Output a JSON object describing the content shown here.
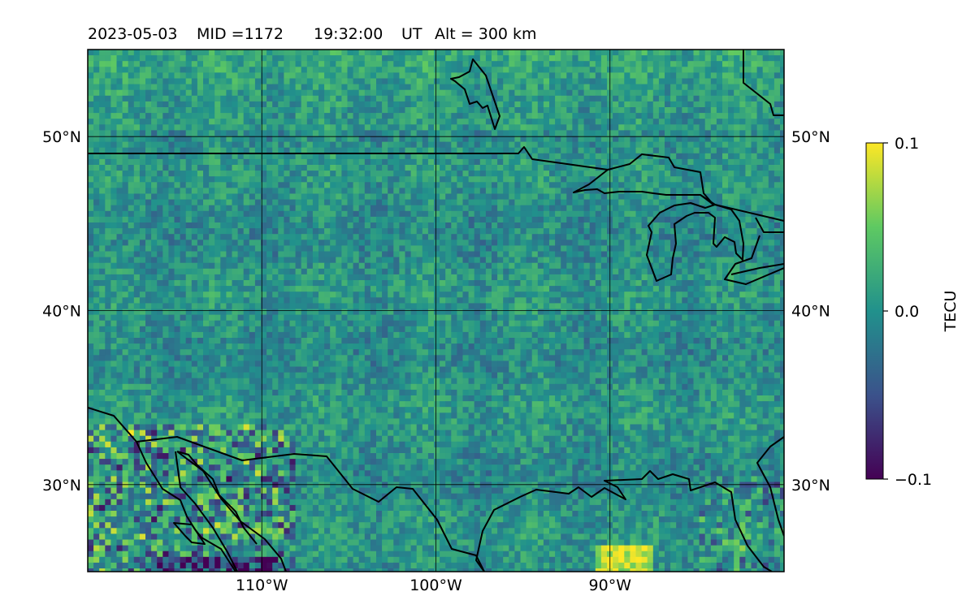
{
  "title": {
    "date": "2023-05-03",
    "mid": "MID =1172",
    "time": "19:32:00",
    "ut": "UT",
    "alt": "Alt = 300 km"
  },
  "map": {
    "projection": "equirectangular",
    "lon_range": [
      -120,
      -80
    ],
    "lat_range": [
      25,
      55
    ],
    "gridlines": true,
    "lon_ticks": [
      {
        "value": -110,
        "label": "110°W"
      },
      {
        "value": -100,
        "label": "100°W"
      },
      {
        "value": -90,
        "label": "90°W"
      }
    ],
    "lat_ticks": [
      {
        "value": 50,
        "label": "50°N"
      },
      {
        "value": 40,
        "label": "40°N"
      },
      {
        "value": 30,
        "label": "30°N"
      }
    ],
    "field": "differential TEC (TECU)",
    "colormap": "viridis",
    "noise_level": "near zero across continent with positive/negative anomalies in SW Mexico and Gulf coast"
  },
  "colorbar": {
    "label": "TECU",
    "min": -0.1,
    "max": 0.1,
    "ticks": [
      {
        "value": 0.1,
        "label": "0.1"
      },
      {
        "value": 0.0,
        "label": "0.0"
      },
      {
        "value": -0.1,
        "label": "−0.1"
      }
    ],
    "colors": [
      "#440154",
      "#3b528b",
      "#21918c",
      "#5ec962",
      "#fde725"
    ]
  }
}
